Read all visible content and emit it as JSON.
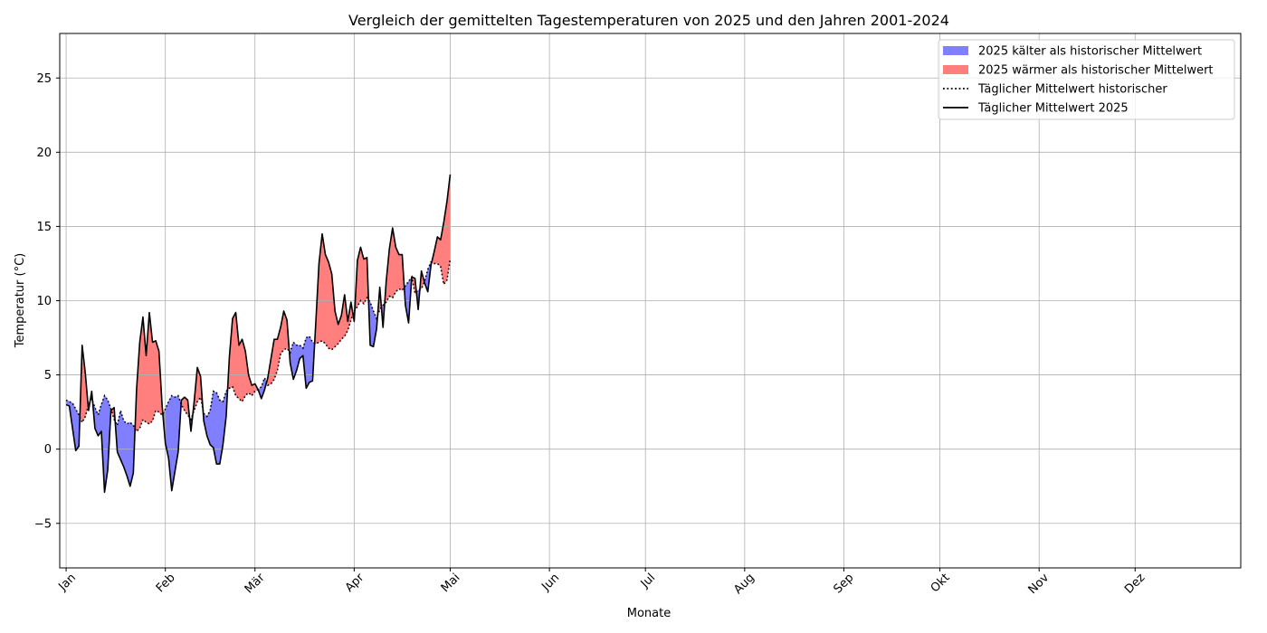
{
  "chart_data": {
    "type": "line",
    "title": "Vergleich der gemittelten Tagestemperaturen von 2025 und den Jahren 2001-2024",
    "xlabel": "Monate",
    "ylabel": "Temperatur (°C)",
    "x_range": [
      -2,
      367
    ],
    "ylim": [
      -8,
      28
    ],
    "grid": true,
    "legend_position": "top-right",
    "x_ticks": [
      {
        "day": 0,
        "label": "Jan"
      },
      {
        "day": 31,
        "label": "Feb"
      },
      {
        "day": 59,
        "label": "Mär"
      },
      {
        "day": 90,
        "label": "Apr"
      },
      {
        "day": 120,
        "label": "Mai"
      },
      {
        "day": 151,
        "label": "Jun"
      },
      {
        "day": 181,
        "label": "Jul"
      },
      {
        "day": 212,
        "label": "Aug"
      },
      {
        "day": 243,
        "label": "Sep"
      },
      {
        "day": 273,
        "label": "Okt"
      },
      {
        "day": 304,
        "label": "Nov"
      },
      {
        "day": 334,
        "label": "Dez"
      }
    ],
    "y_ticks": [
      {
        "value": -5,
        "label": "−5"
      },
      {
        "value": 0,
        "label": "0"
      },
      {
        "value": 5,
        "label": "5"
      },
      {
        "value": 10,
        "label": "10"
      },
      {
        "value": 15,
        "label": "15"
      },
      {
        "value": 20,
        "label": "20"
      },
      {
        "value": 25,
        "label": "25"
      }
    ],
    "legend": [
      {
        "label": "2025 kälter als historischer Mittelwert",
        "kind": "patch",
        "color": "#7f7fff"
      },
      {
        "label": "2025 wärmer als historischer Mittelwert",
        "kind": "patch",
        "color": "#ff7f7f"
      },
      {
        "label": "Täglicher Mittelwert historischer",
        "kind": "dotted",
        "color": "#000000"
      },
      {
        "label": "Täglicher Mittelwert 2025",
        "kind": "solid",
        "color": "#000000"
      }
    ],
    "colors": {
      "colder": "#7f7fff",
      "warmer": "#ff7f7f",
      "line": "#000000",
      "grid": "#b0b0b0"
    },
    "series": [
      {
        "name": "Täglicher Mittelwert historischer",
        "style": "dotted",
        "values": [
          3.3,
          3.2,
          3.1,
          2.7,
          2.3,
          1.8,
          2.2,
          3.0,
          3.4,
          2.8,
          2.3,
          3.0,
          3.6,
          3.3,
          2.7,
          2.0,
          1.6,
          2.6,
          1.9,
          1.7,
          1.8,
          1.6,
          1.2,
          1.4,
          2.0,
          1.8,
          1.7,
          1.9,
          2.6,
          2.5,
          2.3,
          2.7,
          3.2,
          3.6,
          3.5,
          3.6,
          3.0,
          2.6,
          2.3,
          2.0,
          2.6,
          3.2,
          3.5,
          2.4,
          2.2,
          2.6,
          3.9,
          3.8,
          3.3,
          3.2,
          3.9,
          4.1,
          4.2,
          3.6,
          3.4,
          3.2,
          3.6,
          3.8,
          3.6,
          3.9,
          4.0,
          4.2,
          4.8,
          4.3,
          4.4,
          4.7,
          5.3,
          6.4,
          6.7,
          6.8,
          6.5,
          7.2,
          7.0,
          7.0,
          6.8,
          7.5,
          7.6,
          7.2,
          7.1,
          7.2,
          7.3,
          7.1,
          6.8,
          6.7,
          6.9,
          7.1,
          7.4,
          7.6,
          8.0,
          8.7,
          9.3,
          9.6,
          10.0,
          9.8,
          10.2,
          9.9,
          9.3,
          8.8,
          9.4,
          9.7,
          9.9,
          10.3,
          10.2,
          10.6,
          10.8,
          10.7,
          11.0,
          11.3,
          11.6,
          10.5,
          10.7,
          10.8,
          11.3,
          12.1,
          12.6,
          12.5,
          12.5,
          12.3,
          11.1,
          11.4,
          12.8,
          13.0,
          12.8
        ]
      },
      {
        "name": "Täglicher Mittelwert 2025",
        "style": "solid",
        "values": [
          3.0,
          2.9,
          1.4,
          -0.1,
          0.2,
          7.0,
          5.1,
          2.6,
          3.9,
          1.4,
          0.9,
          1.2,
          -2.9,
          -1.4,
          2.6,
          2.8,
          -0.2,
          -0.7,
          -1.2,
          -1.8,
          -2.5,
          -1.6,
          4.0,
          7.2,
          8.9,
          6.3,
          9.2,
          7.2,
          7.3,
          6.6,
          2.9,
          0.4,
          -0.6,
          -2.8,
          -1.5,
          -0.2,
          3.3,
          3.5,
          3.3,
          1.2,
          3.2,
          5.5,
          4.9,
          1.9,
          0.9,
          0.3,
          0.1,
          -1.0,
          -1.0,
          0.3,
          2.2,
          6.2,
          8.8,
          9.2,
          7.0,
          7.4,
          6.6,
          5.0,
          4.3,
          4.4,
          4.0,
          3.4,
          4.0,
          4.8,
          6.1,
          7.4,
          7.4,
          8.2,
          9.3,
          8.7,
          5.8,
          4.7,
          5.3,
          6.1,
          6.3,
          4.1,
          4.5,
          4.6,
          8.5,
          12.5,
          14.5,
          13.1,
          12.6,
          11.8,
          9.3,
          8.4,
          9.0,
          10.4,
          8.6,
          9.9,
          8.6,
          12.7,
          13.6,
          12.8,
          12.9,
          7.0,
          6.9,
          8.1,
          10.9,
          8.2,
          11.3,
          13.5,
          14.9,
          13.6,
          13.1,
          13.1,
          9.7,
          8.5,
          11.6,
          11.5,
          9.4,
          12.0,
          11.2,
          10.6,
          12.4,
          13.3,
          14.3,
          14.1,
          15.3,
          16.7,
          18.5
        ]
      }
    ]
  }
}
